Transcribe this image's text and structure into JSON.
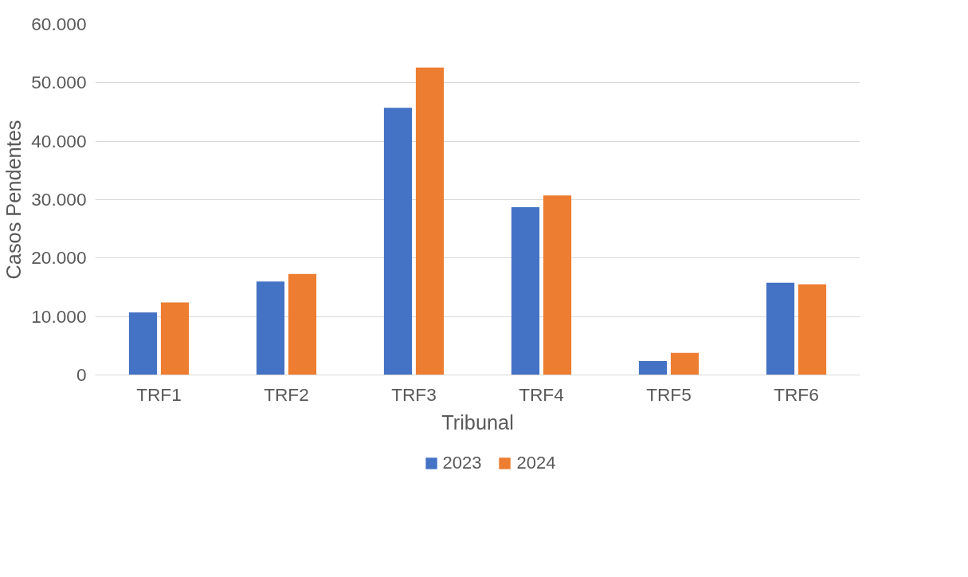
{
  "chart_data": {
    "type": "bar",
    "xlabel": "Tribunal",
    "ylabel": "Casos Pendentes",
    "categories": [
      "TRF1",
      "TRF2",
      "TRF3",
      "TRF4",
      "TRF5",
      "TRF6"
    ],
    "series": [
      {
        "name": "2023",
        "color": "#4472c4",
        "values": [
          10700,
          16000,
          45700,
          28700,
          2400,
          15800
        ]
      },
      {
        "name": "2024",
        "color": "#ed7d31",
        "values": [
          12400,
          17300,
          52600,
          30700,
          3800,
          15500
        ]
      }
    ],
    "ylim": [
      0,
      60000
    ],
    "yticks": [
      {
        "value": 0,
        "label": "0"
      },
      {
        "value": 10000,
        "label": "10.000"
      },
      {
        "value": 20000,
        "label": "20.000"
      },
      {
        "value": 30000,
        "label": "30.000"
      },
      {
        "value": 40000,
        "label": "40.000"
      },
      {
        "value": 50000,
        "label": "50.000"
      },
      {
        "value": 60000,
        "label": "60.000"
      }
    ],
    "grid": "y",
    "legend": "bottom"
  }
}
